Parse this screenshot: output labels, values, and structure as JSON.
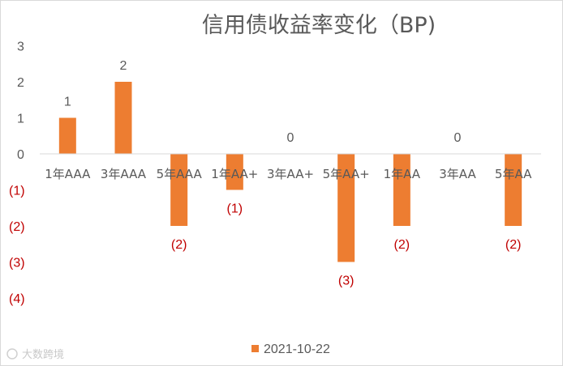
{
  "chart_data": {
    "type": "bar",
    "title": "信用债收益率变化（BP)",
    "categories": [
      "1年AAA",
      "3年AAA",
      "5年AAA",
      "1年AA+",
      "3年AA+",
      "5年AA+",
      "1年AA",
      "3年AA",
      "5年AA"
    ],
    "series": [
      {
        "name": "2021-10-22",
        "values": [
          1,
          2,
          -2,
          -1,
          0,
          -3,
          -2,
          0,
          -2
        ]
      }
    ],
    "data_labels": [
      "1",
      "2",
      "(2)",
      "(1)",
      "0",
      "(3)",
      "(2)",
      "0",
      "(2)"
    ],
    "y_ticks": [
      {
        "value": 3,
        "label": "3"
      },
      {
        "value": 2,
        "label": "2"
      },
      {
        "value": 1,
        "label": "1"
      },
      {
        "value": 0,
        "label": "0"
      },
      {
        "value": -1,
        "label": "(1)"
      },
      {
        "value": -2,
        "label": "(2)"
      },
      {
        "value": -3,
        "label": "(3)"
      },
      {
        "value": -4,
        "label": "(4)"
      }
    ],
    "ylim": [
      -4,
      3
    ],
    "xlabel": "",
    "ylabel": "",
    "grid": false,
    "legend_position": "bottom"
  },
  "colors": {
    "bar": "#ED7D31",
    "axis_line": "#d9d9d9",
    "text": "#595959",
    "negative_text": "#C00000"
  },
  "watermark": "大数跨境"
}
